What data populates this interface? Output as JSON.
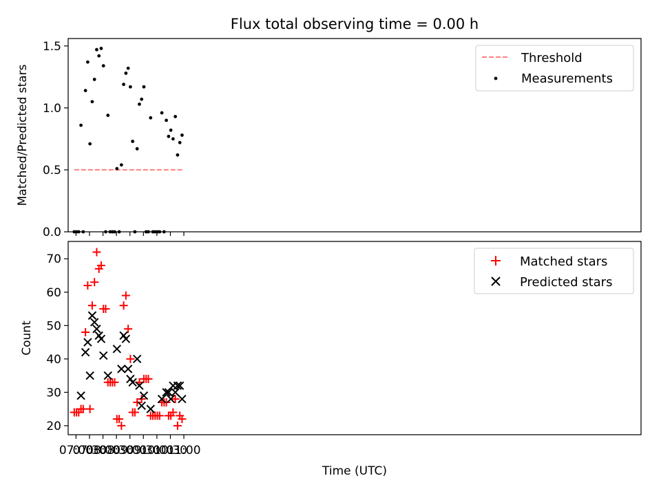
{
  "figure": {
    "title": "Flux total observing time = 0.00 h"
  },
  "chart_data": [
    {
      "type": "scatter",
      "panel": "top",
      "title": "Flux total observing time = 0.00 h",
      "xlabel": "",
      "ylabel": "Matched/Predicted stars",
      "ylim": [
        0,
        1.56
      ],
      "yticks": [
        0,
        0.5,
        1.0,
        1.5
      ],
      "ytick_labels": [
        "0.0",
        "0.5",
        "1.0",
        "1.5"
      ],
      "x_axis": "time",
      "xlim_minutes": [
        -17.5,
        1257.5
      ],
      "threshold": {
        "name": "Threshold",
        "value": 0.5,
        "x_range": [
          "06:56",
          "10:56"
        ],
        "color": "#ff7f7f"
      },
      "legend_position": "upper right",
      "series": [
        {
          "name": "Measurements",
          "color": "#000000",
          "points": [
            [
              "06:56",
              0
            ],
            [
              "07:01",
              0
            ],
            [
              "07:06",
              0
            ],
            [
              "07:11",
              0.86
            ],
            [
              "07:16",
              0
            ],
            [
              "07:21",
              1.14
            ],
            [
              "07:26",
              1.37
            ],
            [
              "07:31",
              0.71
            ],
            [
              "07:36",
              1.05
            ],
            [
              "07:41",
              1.23
            ],
            [
              "07:46",
              1.47
            ],
            [
              "07:51",
              1.42
            ],
            [
              "07:56",
              1.48
            ],
            [
              "08:01",
              1.34
            ],
            [
              "08:06",
              0
            ],
            [
              "08:11",
              0.94
            ],
            [
              "08:16",
              0
            ],
            [
              "08:21",
              0
            ],
            [
              "08:26",
              0
            ],
            [
              "08:31",
              0.51
            ],
            [
              "08:36",
              0
            ],
            [
              "08:41",
              0.54
            ],
            [
              "08:46",
              1.19
            ],
            [
              "08:51",
              1.28
            ],
            [
              "08:56",
              1.32
            ],
            [
              "09:01",
              1.17
            ],
            [
              "09:06",
              0.73
            ],
            [
              "09:11",
              0
            ],
            [
              "09:16",
              0.67
            ],
            [
              "09:21",
              1.03
            ],
            [
              "09:26",
              1.07
            ],
            [
              "09:31",
              1.17
            ],
            [
              "09:36",
              0
            ],
            [
              "09:41",
              0
            ],
            [
              "09:46",
              0.92
            ],
            [
              "09:51",
              0
            ],
            [
              "09:56",
              0
            ],
            [
              "10:01",
              0
            ],
            [
              "10:06",
              0
            ],
            [
              "10:11",
              0.96
            ],
            [
              "10:16",
              0
            ],
            [
              "10:21",
              0.9
            ],
            [
              "10:26",
              0.77
            ],
            [
              "10:31",
              0.82
            ],
            [
              "10:36",
              0.75
            ],
            [
              "10:41",
              0.93
            ],
            [
              "10:46",
              0.62
            ],
            [
              "10:51",
              0.72
            ],
            [
              "10:56",
              0.78
            ]
          ]
        }
      ]
    },
    {
      "type": "scatter",
      "panel": "bottom",
      "xlabel": "Time (UTC)",
      "ylabel": "Count",
      "ylim": [
        17.3,
        75.2
      ],
      "yticks": [
        20,
        30,
        40,
        50,
        60,
        70
      ],
      "ytick_labels": [
        "20",
        "30",
        "40",
        "50",
        "60",
        "70"
      ],
      "x_axis": "time",
      "xlim_minutes": [
        -17.5,
        1257.5
      ],
      "xticks": [
        "07:00",
        "07:30",
        "08:00",
        "08:30",
        "09:00",
        "09:30",
        "10:00",
        "10:30",
        "11:00"
      ],
      "legend_position": "upper right",
      "series": [
        {
          "name": "Matched stars",
          "marker": "+",
          "color": "#ff0000",
          "points": [
            [
              "06:56",
              24
            ],
            [
              "07:01",
              24
            ],
            [
              "07:06",
              24
            ],
            [
              "07:11",
              25
            ],
            [
              "07:16",
              25
            ],
            [
              "07:21",
              48
            ],
            [
              "07:26",
              62
            ],
            [
              "07:31",
              25
            ],
            [
              "07:36",
              56
            ],
            [
              "07:41",
              63
            ],
            [
              "07:46",
              72
            ],
            [
              "07:51",
              67
            ],
            [
              "07:56",
              68
            ],
            [
              "08:01",
              55
            ],
            [
              "08:06",
              55
            ],
            [
              "08:11",
              33
            ],
            [
              "08:16",
              33
            ],
            [
              "08:21",
              33
            ],
            [
              "08:26",
              33
            ],
            [
              "08:31",
              22
            ],
            [
              "08:36",
              22
            ],
            [
              "08:41",
              20
            ],
            [
              "08:46",
              56
            ],
            [
              "08:51",
              59
            ],
            [
              "08:56",
              49
            ],
            [
              "09:01",
              40
            ],
            [
              "09:06",
              24
            ],
            [
              "09:11",
              24
            ],
            [
              "09:16",
              27
            ],
            [
              "09:21",
              33
            ],
            [
              "09:26",
              28
            ],
            [
              "09:31",
              34
            ],
            [
              "09:36",
              34
            ],
            [
              "09:41",
              34
            ],
            [
              "09:46",
              23
            ],
            [
              "09:51",
              23
            ],
            [
              "09:56",
              23
            ],
            [
              "10:01",
              23
            ],
            [
              "10:06",
              23
            ],
            [
              "10:11",
              27
            ],
            [
              "10:16",
              27
            ],
            [
              "10:21",
              27
            ],
            [
              "10:26",
              23
            ],
            [
              "10:31",
              23
            ],
            [
              "10:36",
              24
            ],
            [
              "10:41",
              28
            ],
            [
              "10:46",
              20
            ],
            [
              "10:51",
              23
            ],
            [
              "10:56",
              22
            ]
          ]
        },
        {
          "name": "Predicted stars",
          "marker": "x",
          "color": "#000000",
          "points": [
            [
              "07:11",
              29
            ],
            [
              "07:21",
              42
            ],
            [
              "07:26",
              45
            ],
            [
              "07:31",
              35
            ],
            [
              "07:36",
              53
            ],
            [
              "07:41",
              51
            ],
            [
              "07:46",
              49
            ],
            [
              "07:51",
              47
            ],
            [
              "07:56",
              46
            ],
            [
              "08:01",
              41
            ],
            [
              "08:11",
              35
            ],
            [
              "08:31",
              43
            ],
            [
              "08:41",
              37
            ],
            [
              "08:46",
              47
            ],
            [
              "08:51",
              46
            ],
            [
              "08:56",
              37
            ],
            [
              "09:01",
              34
            ],
            [
              "09:06",
              33
            ],
            [
              "09:16",
              40
            ],
            [
              "09:21",
              32
            ],
            [
              "09:26",
              26
            ],
            [
              "09:31",
              29
            ],
            [
              "09:46",
              25
            ],
            [
              "10:11",
              28
            ],
            [
              "10:21",
              30
            ],
            [
              "10:26",
              30
            ],
            [
              "10:31",
              28
            ],
            [
              "10:36",
              32
            ],
            [
              "10:41",
              30
            ],
            [
              "10:46",
              32
            ],
            [
              "10:51",
              32
            ],
            [
              "10:56",
              28
            ]
          ]
        }
      ]
    }
  ]
}
